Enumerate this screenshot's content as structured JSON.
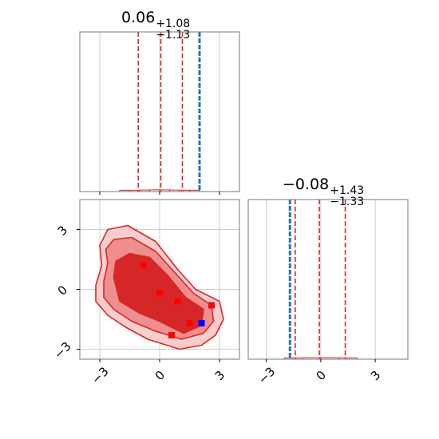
{
  "chart_data": [
    {
      "type": "histogram",
      "panel": "top-left marginal (parameter 1)",
      "title": {
        "value": "0.06",
        "upper": "+1.08",
        "lower": "−1.13"
      },
      "xlim": [
        -4.0,
        4.0
      ],
      "xticks": [
        -3,
        0,
        3
      ],
      "quantile_lines": [
        -1.07,
        0.06,
        1.14
      ],
      "true_value": 2.0,
      "hist_x": [
        -2.0,
        -1.5,
        -1.0,
        -0.5,
        0.0,
        0.5,
        1.0,
        1.5,
        2.0
      ],
      "hist_heights": [
        0.01,
        0.01,
        0.012,
        0.013,
        0.013,
        0.012,
        0.011,
        0.01,
        0.009
      ],
      "grid": true
    },
    {
      "type": "histogram",
      "panel": "bottom-right marginal (parameter 2)",
      "title": {
        "value": "−0.08",
        "upper": "+1.43",
        "lower": "−1.33"
      },
      "xlim": [
        -4.0,
        4.8
      ],
      "xticks": [
        -3,
        0,
        3
      ],
      "xtick_labels": [
        "−3",
        "0",
        "3"
      ],
      "quantile_lines": [
        -1.41,
        -0.08,
        1.35
      ],
      "true_value": -1.7,
      "hist_x": [
        -2.0,
        -1.0,
        0.0,
        1.0,
        2.0
      ],
      "hist_heights": [
        0.01,
        0.012,
        0.012,
        0.011,
        0.01
      ],
      "grid": true
    },
    {
      "type": "contour",
      "panel": "bottom-left 2D posterior",
      "xlim": [
        -4.0,
        4.0
      ],
      "ylim": [
        -3.5,
        4.5
      ],
      "xticks": [
        -3,
        0,
        3
      ],
      "yticks": [
        -3,
        0,
        3
      ],
      "xtick_labels": [
        "−3",
        "0",
        "3"
      ],
      "ytick_labels": [
        "−3",
        "0",
        "3"
      ],
      "contours": [
        [
          [
            -3.2,
            0.2
          ],
          [
            -2.9,
            1.2
          ],
          [
            -3.0,
            2.2
          ],
          [
            -2.6,
            3.0
          ],
          [
            -1.6,
            3.2
          ],
          [
            -0.2,
            2.4
          ],
          [
            0.9,
            1.0
          ],
          [
            1.8,
            0.0
          ],
          [
            3.0,
            -0.6
          ],
          [
            3.2,
            -1.5
          ],
          [
            2.8,
            -2.3
          ],
          [
            2.1,
            -2.8
          ],
          [
            1.0,
            -3.0
          ],
          [
            -0.6,
            -2.5
          ],
          [
            -1.7,
            -1.9
          ],
          [
            -2.6,
            -1.3
          ],
          [
            -3.2,
            -0.6
          ]
        ],
        [
          [
            -2.8,
            0.4
          ],
          [
            -2.6,
            1.3
          ],
          [
            -2.7,
            2.0
          ],
          [
            -2.3,
            2.5
          ],
          [
            -1.4,
            2.6
          ],
          [
            -0.2,
            1.9
          ],
          [
            0.8,
            0.8
          ],
          [
            1.7,
            -0.2
          ],
          [
            2.6,
            -0.8
          ],
          [
            2.7,
            -1.6
          ],
          [
            2.2,
            -2.2
          ],
          [
            1.1,
            -2.5
          ],
          [
            -0.2,
            -2.1
          ],
          [
            -1.4,
            -1.6
          ],
          [
            -2.3,
            -1.0
          ],
          [
            -2.8,
            -0.4
          ]
        ],
        [
          [
            -2.3,
            0.6
          ],
          [
            -2.2,
            1.4
          ],
          [
            -1.5,
            1.8
          ],
          [
            -0.5,
            1.6
          ],
          [
            0.4,
            0.7
          ],
          [
            1.3,
            -0.4
          ],
          [
            2.2,
            -1.0
          ],
          [
            2.1,
            -1.8
          ],
          [
            1.2,
            -2.2
          ],
          [
            0.0,
            -1.6
          ],
          [
            -1.0,
            -1.2
          ],
          [
            -2.0,
            -0.6
          ]
        ]
      ],
      "samples_red": [
        [
          -0.8,
          1.2
        ],
        [
          0.0,
          -0.2
        ],
        [
          0.9,
          -0.6
        ],
        [
          2.6,
          -0.8
        ],
        [
          1.5,
          -1.7
        ],
        [
          0.6,
          -2.3
        ]
      ],
      "samples_blue": [
        [
          2.1,
          -1.7
        ]
      ],
      "colors": {
        "primary": "#d62728",
        "truth": "#1f77b4",
        "blue_point": "#0000ff",
        "grid": "#cccccc",
        "frame": "#777777"
      },
      "grid": true
    }
  ]
}
